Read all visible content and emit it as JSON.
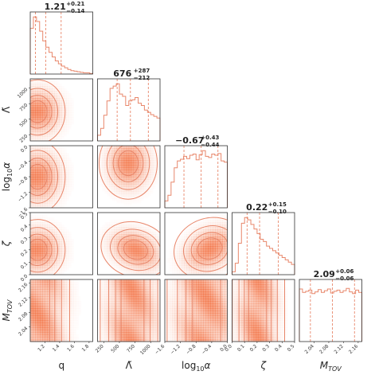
{
  "chart_data": {
    "type": "corner",
    "parameters": [
      {
        "key": "q",
        "label_main": "q",
        "label_sub": "",
        "label_italic": false,
        "range": [
          1.0,
          1.85
        ],
        "ticks": [
          1.2,
          1.4,
          1.6,
          1.8
        ],
        "tick_labels": [
          "1.2",
          "1.4",
          "1.6",
          "1.8"
        ],
        "median": 1.21,
        "plus": 0.21,
        "minus": 0.14,
        "stat_text": "1.21",
        "stat_plus": "+0.21",
        "stat_minus": "−0.14",
        "quantile_lines": [
          1.07,
          1.21,
          1.42
        ],
        "histogram": [
          0.8,
          1.0,
          0.92,
          0.75,
          0.58,
          0.47,
          0.38,
          0.3,
          0.23,
          0.18,
          0.14,
          0.11,
          0.08,
          0.06,
          0.05,
          0.04,
          0.03,
          0.02,
          0.02,
          0.01
        ]
      },
      {
        "key": "lambda",
        "label_main": "Λ̃",
        "label_sub": "",
        "label_italic": false,
        "range": [
          150,
          1150
        ],
        "ticks": [
          250,
          500,
          750,
          1000
        ],
        "tick_labels": [
          "250",
          "500",
          "750",
          "1000"
        ],
        "median": 676,
        "plus": 287,
        "minus": 212,
        "stat_text": "676",
        "stat_plus": "+287",
        "stat_minus": "−212",
        "quantile_lines": [
          464,
          676,
          963
        ],
        "histogram": [
          0.1,
          0.22,
          0.45,
          0.7,
          0.92,
          0.96,
          1.0,
          0.82,
          0.78,
          0.62,
          0.7,
          0.72,
          0.76,
          0.66,
          0.62,
          0.54,
          0.5,
          0.46,
          0.43,
          0.4
        ]
      },
      {
        "key": "log10alpha",
        "label_main": "log",
        "label_sub": "10",
        "label_tail": "α",
        "label_italic": false,
        "range": [
          -1.6,
          0.0
        ],
        "ticks": [
          -1.6,
          -1.2,
          -0.8,
          -0.4,
          0.0
        ],
        "tick_labels": [
          "−1.6",
          "−1.2",
          "−0.8",
          "−0.4",
          "0.0"
        ],
        "median": -0.67,
        "plus": 0.43,
        "minus": 0.44,
        "stat_text": "−0.67",
        "stat_plus": "+0.43",
        "stat_minus": "−0.44",
        "quantile_lines": [
          -1.11,
          -0.67,
          -0.24
        ],
        "histogram": [
          0.12,
          0.22,
          0.45,
          0.7,
          0.82,
          0.85,
          0.9,
          0.86,
          0.92,
          0.94,
          0.84,
          0.93,
          1.0,
          0.9,
          0.88,
          0.94,
          0.92,
          0.95,
          0.82,
          0.8
        ]
      },
      {
        "key": "zeta",
        "label_main": "ζ",
        "label_sub": "",
        "label_italic": true,
        "range": [
          0.0,
          0.5
        ],
        "ticks": [
          0.0,
          0.1,
          0.2,
          0.3,
          0.4,
          0.5
        ],
        "tick_labels": [
          "0.0",
          "0.1",
          "0.2",
          "0.3",
          "0.4",
          "0.5"
        ],
        "median": 0.22,
        "plus": 0.15,
        "minus": 0.1,
        "stat_text": "0.22",
        "stat_plus": "+0.15",
        "stat_minus": "−0.10",
        "quantile_lines": [
          0.12,
          0.22,
          0.37
        ],
        "histogram": [
          0.05,
          0.2,
          0.55,
          0.9,
          1.0,
          0.96,
          0.88,
          0.8,
          0.72,
          0.62,
          0.58,
          0.5,
          0.46,
          0.42,
          0.38,
          0.34,
          0.3,
          0.26,
          0.22,
          0.18
        ]
      },
      {
        "key": "mtov",
        "label_main": "M",
        "label_sub": "TOV",
        "label_italic": true,
        "range": [
          2.0,
          2.17
        ],
        "ticks": [
          2.04,
          2.08,
          2.12,
          2.16
        ],
        "tick_labels": [
          "2.04",
          "2.08",
          "2.12",
          "2.16"
        ],
        "median": 2.09,
        "plus": 0.06,
        "minus": 0.06,
        "stat_text": "2.09",
        "stat_plus": "+0.06",
        "stat_minus": "−0.06",
        "quantile_lines": [
          2.03,
          2.09,
          2.15
        ],
        "histogram": [
          0.92,
          0.86,
          0.88,
          0.9,
          0.84,
          0.87,
          0.91,
          0.86,
          0.89,
          0.92,
          0.85,
          0.88,
          0.9,
          0.86,
          0.89,
          0.93,
          0.87,
          0.84,
          0.9,
          0.86
        ]
      }
    ],
    "contour_levels": [
      0.3,
      0.55,
      0.8,
      0.95
    ],
    "colors": {
      "fill": "#f15a24",
      "line": "#e8876b",
      "background": "#ffffff"
    },
    "pairs": [
      {
        "row": 1,
        "col": 0,
        "center": [
          1.1,
          620
        ],
        "width": [
          0.18,
          210
        ],
        "corr": 0.0,
        "truncate_low": true
      },
      {
        "row": 2,
        "col": 0,
        "center": [
          1.1,
          -0.8
        ],
        "width": [
          0.18,
          0.38
        ],
        "corr": 0.0,
        "truncate_low": true
      },
      {
        "row": 2,
        "col": 1,
        "center": [
          640,
          -0.45
        ],
        "width": [
          190,
          0.38
        ],
        "corr": 0.0
      },
      {
        "row": 3,
        "col": 0,
        "center": [
          1.1,
          0.2
        ],
        "width": [
          0.18,
          0.1
        ],
        "corr": 0.0,
        "truncate_low": true
      },
      {
        "row": 3,
        "col": 1,
        "center": [
          760,
          0.2
        ],
        "width": [
          230,
          0.09
        ],
        "corr": -0.3
      },
      {
        "row": 3,
        "col": 2,
        "center": [
          -0.45,
          0.21
        ],
        "width": [
          0.38,
          0.1
        ],
        "corr": 0.35
      },
      {
        "row": 4,
        "col": 0,
        "center": [
          1.12,
          2.09
        ],
        "width": [
          0.2,
          0.06
        ],
        "corr": 0.0,
        "truncate_low": true
      },
      {
        "row": 4,
        "col": 1,
        "center": [
          700,
          2.09
        ],
        "width": [
          230,
          0.06
        ],
        "corr": 0.0
      },
      {
        "row": 4,
        "col": 2,
        "center": [
          -0.55,
          2.09
        ],
        "width": [
          0.45,
          0.06
        ],
        "corr": 0.0
      },
      {
        "row": 4,
        "col": 3,
        "center": [
          0.2,
          2.09
        ],
        "width": [
          0.09,
          0.06
        ],
        "corr": 0.0
      }
    ]
  }
}
